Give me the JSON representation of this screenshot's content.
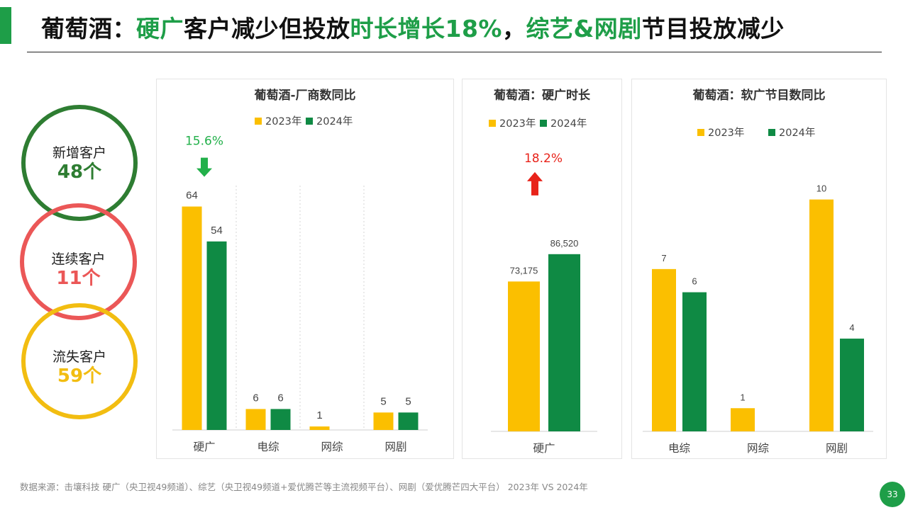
{
  "title": {
    "parts": [
      {
        "text": "葡萄酒：",
        "hl": false
      },
      {
        "text": "硬广",
        "hl": true
      },
      {
        "text": "客户减少但投放",
        "hl": false
      },
      {
        "text": "时长增长18%",
        "hl": true
      },
      {
        "text": "，",
        "hl": false
      },
      {
        "text": "综艺&网剧",
        "hl": true
      },
      {
        "text": "节目投放减少",
        "hl": false
      }
    ]
  },
  "colors": {
    "accent": "#1e9e48",
    "y2023": "#fbbf00",
    "y2024": "#0f8a44",
    "down": "#22b04a",
    "up": "#e8231a"
  },
  "circles": [
    {
      "label": "新增客户",
      "value": "48个",
      "color": "#2e7d32"
    },
    {
      "label": "连续客户",
      "value": "11个",
      "color": "#eb5757"
    },
    {
      "label": "流失客户",
      "value": "59个",
      "color": "#f2bd11"
    }
  ],
  "chart_data": [
    {
      "type": "bar",
      "title": "葡萄酒-厂商数同比",
      "categories": [
        "硬广",
        "电综",
        "网综",
        "网剧"
      ],
      "series": [
        {
          "name": "2023年",
          "values": [
            64,
            6,
            1,
            5
          ]
        },
        {
          "name": "2024年",
          "values": [
            54,
            6,
            null,
            5
          ]
        }
      ],
      "value_labels": [
        [
          "64",
          "6",
          "1",
          "5"
        ],
        [
          "54",
          "6",
          "",
          "5"
        ]
      ],
      "ylim": [
        0,
        70
      ],
      "legend": "top",
      "grid": false,
      "annotation": {
        "text": "15.6%",
        "direction": "down",
        "category": "硬广"
      }
    },
    {
      "type": "bar",
      "title": "葡萄酒：硬广时长",
      "categories": [
        "硬广"
      ],
      "series": [
        {
          "name": "2023年",
          "values": [
            73175
          ]
        },
        {
          "name": "2024年",
          "values": [
            86520
          ]
        }
      ],
      "value_labels": [
        [
          "73,175"
        ],
        [
          "86,520"
        ]
      ],
      "ylim": [
        0,
        120000
      ],
      "legend": "top",
      "grid": false,
      "annotation": {
        "text": "18.2%",
        "direction": "up",
        "category": "硬广"
      }
    },
    {
      "type": "bar",
      "title": "葡萄酒：软广节目数同比",
      "categories": [
        "电综",
        "网综",
        "网剧"
      ],
      "series": [
        {
          "name": "2023年",
          "values": [
            7,
            1,
            10
          ]
        },
        {
          "name": "2024年",
          "values": [
            6,
            null,
            4
          ]
        }
      ],
      "value_labels": [
        [
          "7",
          "1",
          "10"
        ],
        [
          "6",
          "",
          "4"
        ]
      ],
      "ylim": [
        0,
        10.6
      ],
      "legend": "top",
      "grid": false
    }
  ],
  "footer": "数据来源：击壤科技  硬广（央卫视49频道）、综艺（央卫视49频道+爱优腾芒等主流视频平台）、网剧（爱优腾芒四大平台）  2023年 VS 2024年",
  "page_number": "33"
}
